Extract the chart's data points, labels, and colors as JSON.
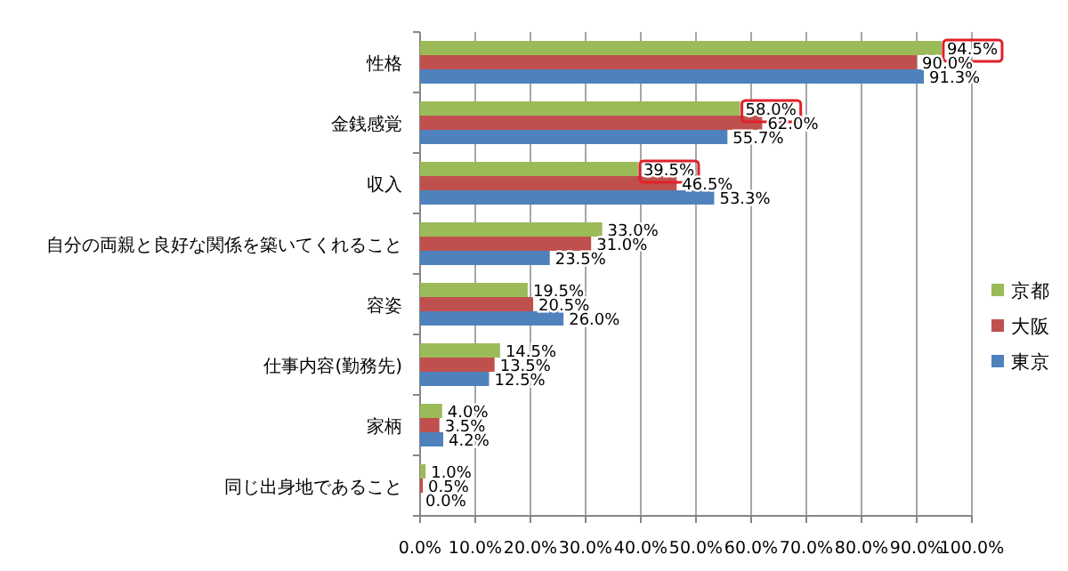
{
  "chart_data": {
    "type": "bar",
    "orientation": "horizontal",
    "categories": [
      "性格",
      "金銭感覚",
      "収入",
      "自分の両親と良好な関係を築いてくれること",
      "容姿",
      "仕事内容(勤務先)",
      "家柄",
      "同じ出身地であること"
    ],
    "series": [
      {
        "name": "京都",
        "color": "#9bbb59",
        "values": [
          94.5,
          58.0,
          39.5,
          33.0,
          19.5,
          14.5,
          4.0,
          1.0
        ],
        "value_labels": [
          "94.5%",
          "58.0%",
          "39.5%",
          "33.0%",
          "19.5%",
          "14.5%",
          "4.0%",
          "1.0%"
        ]
      },
      {
        "name": "大阪",
        "color": "#c0504d",
        "values": [
          90.0,
          62.0,
          46.5,
          31.0,
          20.5,
          13.5,
          3.5,
          0.5
        ],
        "value_labels": [
          "90.0%",
          "62.0%",
          "46.5%",
          "31.0%",
          "20.5%",
          "13.5%",
          "3.5%",
          "0.5%"
        ]
      },
      {
        "name": "東京",
        "color": "#4f81bd",
        "values": [
          91.3,
          55.7,
          53.3,
          23.5,
          26.0,
          12.5,
          4.2,
          0.0
        ],
        "value_labels": [
          "91.3%",
          "55.7%",
          "53.3%",
          "23.5%",
          "26.0%",
          "12.5%",
          "4.2%",
          "0.0%"
        ]
      }
    ],
    "xlim": [
      0,
      100
    ],
    "xticks": [
      {
        "value": 0,
        "label": "0.0%"
      },
      {
        "value": 10,
        "label": "10.0%"
      },
      {
        "value": 20,
        "label": "20.0%"
      },
      {
        "value": 30,
        "label": "30.0%"
      },
      {
        "value": 40,
        "label": "40.0%"
      },
      {
        "value": 50,
        "label": "50.0%"
      },
      {
        "value": 60,
        "label": "60.0%"
      },
      {
        "value": 70,
        "label": "70.0%"
      },
      {
        "value": 80,
        "label": "80.0%"
      },
      {
        "value": 90,
        "label": "90.0%"
      },
      {
        "value": 100,
        "label": "100.0%"
      }
    ],
    "grid": "x",
    "legend": "right"
  }
}
